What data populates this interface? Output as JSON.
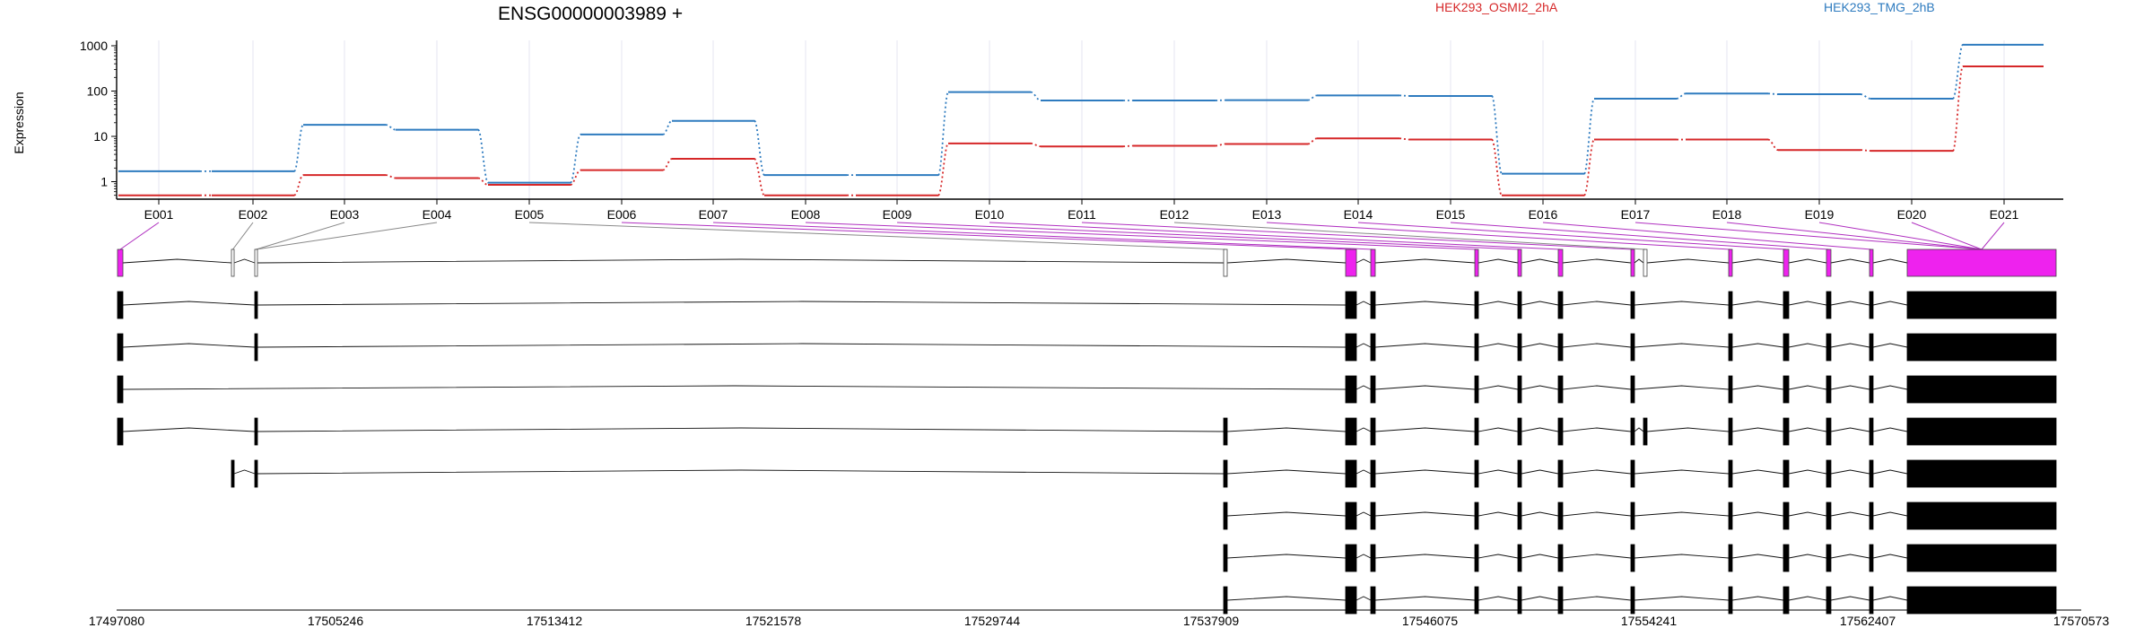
{
  "chart_data": {
    "type": "line",
    "title": "ENSG00000003989 +",
    "ylabel": "Expression",
    "yscale": "log",
    "ylim": [
      0.45,
      1200
    ],
    "yticks": [
      "1",
      "10",
      "100",
      "1000"
    ],
    "grid": "vertical",
    "legend_placement": "top",
    "categories": [
      "E001",
      "E002",
      "E003",
      "E004",
      "E005",
      "E006",
      "E007",
      "E008",
      "E009",
      "E010",
      "E011",
      "E012",
      "E013",
      "E014",
      "E015",
      "E016",
      "E017",
      "E018",
      "E019",
      "E020",
      "E021"
    ],
    "series": [
      {
        "name": "HEK293_OSMI2_2hA",
        "color": "#d62728",
        "values": [
          0.5,
          0.5,
          1.4,
          1.2,
          0.85,
          1.8,
          3.2,
          0.5,
          0.5,
          7,
          6,
          6.2,
          6.8,
          9,
          8.5,
          0.5,
          8.5,
          8.5,
          5,
          4.8,
          350
        ]
      },
      {
        "name": "HEK293_TMG_2hB",
        "color": "#2e7bbf",
        "values": [
          1.7,
          1.7,
          18,
          14,
          0.95,
          11,
          22,
          1.4,
          1.4,
          95,
          62,
          62,
          63,
          80,
          78,
          1.5,
          68,
          88,
          85,
          68,
          1050
        ]
      }
    ],
    "genomic_coordinates": [
      "17497080",
      "17505246",
      "17513412",
      "17521578",
      "17529744",
      "17537909",
      "17546075",
      "17554241",
      "17562407",
      "17570573"
    ],
    "highlight_color": "#ee22ee",
    "transcript_count": 9
  }
}
